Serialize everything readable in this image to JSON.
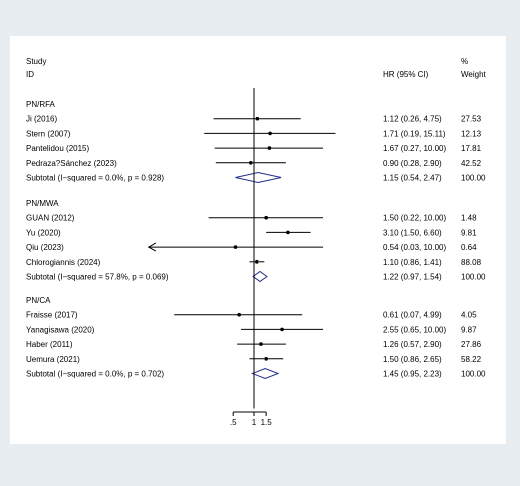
{
  "chart_data": {
    "type": "forest",
    "header": {
      "study_label_1": "Study",
      "study_label_2": "ID",
      "effect_label": "HR (95% CI)",
      "weight_label_1": "%",
      "weight_label_2": "Weight"
    },
    "x_ticks": [
      {
        "value": 0.5,
        "label": ".5"
      },
      {
        "value": 1,
        "label": "1"
      },
      {
        "value": 1.5,
        "label": "1.5"
      }
    ],
    "null_line": 1,
    "groups": [
      {
        "name": "PN/RFA",
        "studies": [
          {
            "label": "Ji (2016)",
            "hr": 1.12,
            "lower": 0.26,
            "upper": 4.75,
            "ci_text": "1.12 (0.26, 4.75)",
            "weight": "27.53"
          },
          {
            "label": "Stern (2007)",
            "hr": 1.71,
            "lower": 0.19,
            "upper": 15.11,
            "ci_text": "1.71 (0.19, 15.11)",
            "weight": "12.13"
          },
          {
            "label": "Pantelidou (2015)",
            "hr": 1.67,
            "lower": 0.27,
            "upper": 10.0,
            "ci_text": "1.67 (0.27, 10.00)",
            "weight": "17.81"
          },
          {
            "label": "Pedraza?Sánchez (2023)",
            "hr": 0.9,
            "lower": 0.28,
            "upper": 2.9,
            "ci_text": "0.90 (0.28, 2.90)",
            "weight": "42.52"
          }
        ],
        "subtotal": {
          "label": "Subtotal  (I−squared = 0.0%, p = 0.928)",
          "hr": 1.15,
          "lower": 0.54,
          "upper": 2.47,
          "ci_text": "1.15 (0.54, 2.47)",
          "weight": "100.00"
        }
      },
      {
        "name": "PN/MWA",
        "studies": [
          {
            "label": "GUAN (2012)",
            "hr": 1.5,
            "lower": 0.22,
            "upper": 10.0,
            "ci_text": "1.50 (0.22, 10.00)",
            "weight": "1.48"
          },
          {
            "label": "Yu (2020)",
            "hr": 3.1,
            "lower": 1.5,
            "upper": 6.6,
            "ci_text": "3.10 (1.50, 6.60)",
            "weight": "9.81"
          },
          {
            "label": "Qiu (2023)",
            "hr": 0.54,
            "lower": 0.03,
            "upper": 10.0,
            "ci_text": "0.54 (0.03, 10.00)",
            "weight": "0.64",
            "arrow_left": true
          },
          {
            "label": "Chlorogiannis (2024)",
            "hr": 1.1,
            "lower": 0.86,
            "upper": 1.41,
            "ci_text": "1.10 (0.86, 1.41)",
            "weight": "88.08"
          }
        ],
        "subtotal": {
          "label": "Subtotal  (I−squared = 57.8%, p = 0.069)",
          "hr": 1.22,
          "lower": 0.97,
          "upper": 1.54,
          "ci_text": "1.22 (0.97, 1.54)",
          "weight": "100.00"
        }
      },
      {
        "name": "PN/CA",
        "studies": [
          {
            "label": "Fraisse (2017)",
            "hr": 0.61,
            "lower": 0.07,
            "upper": 4.99,
            "ci_text": "0.61 (0.07, 4.99)",
            "weight": "4.05"
          },
          {
            "label": "Yanagisawa (2020)",
            "hr": 2.55,
            "lower": 0.65,
            "upper": 10.0,
            "ci_text": "2.55 (0.65, 10.00)",
            "weight": "9.87"
          },
          {
            "label": "Haber (2011)",
            "hr": 1.26,
            "lower": 0.57,
            "upper": 2.9,
            "ci_text": "1.26 (0.57, 2.90)",
            "weight": "27.86"
          },
          {
            "label": "Uemura (2021)",
            "hr": 1.5,
            "lower": 0.86,
            "upper": 2.65,
            "ci_text": "1.50 (0.86, 2.65)",
            "weight": "58.22"
          }
        ],
        "subtotal": {
          "label": "Subtotal  (I−squared = 0.0%, p = 0.702)",
          "hr": 1.45,
          "lower": 0.95,
          "upper": 2.23,
          "ci_text": "1.45 (0.95, 2.23)",
          "weight": "100.00"
        }
      }
    ],
    "colors": {
      "background": "#e8edf2",
      "panel": "#ffffff",
      "line": "#000000",
      "diamond": "#1f2b8c"
    }
  }
}
